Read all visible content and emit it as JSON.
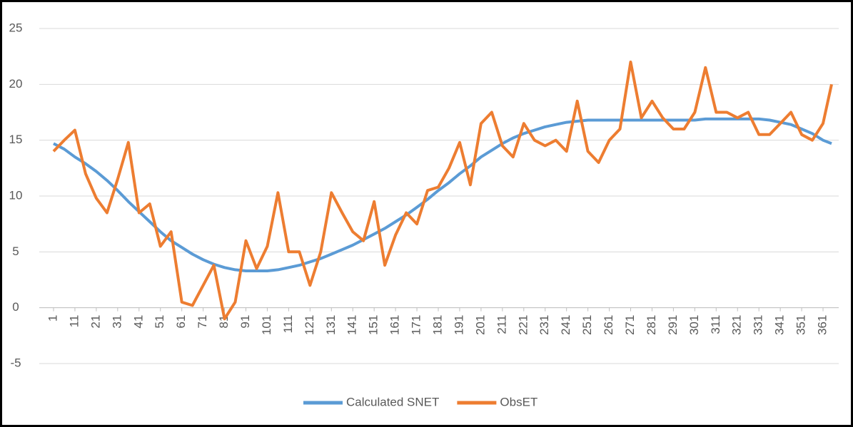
{
  "chart_data": {
    "type": "line",
    "x": [
      1,
      6,
      11,
      16,
      21,
      26,
      31,
      36,
      41,
      46,
      51,
      56,
      61,
      66,
      71,
      76,
      81,
      86,
      91,
      96,
      101,
      106,
      111,
      116,
      121,
      126,
      131,
      136,
      141,
      146,
      151,
      156,
      161,
      166,
      171,
      176,
      181,
      186,
      191,
      196,
      201,
      206,
      211,
      216,
      221,
      226,
      231,
      236,
      241,
      246,
      251,
      256,
      261,
      266,
      271,
      276,
      281,
      286,
      291,
      296,
      301,
      306,
      311,
      316,
      321,
      326,
      331,
      336,
      341,
      346,
      351,
      356,
      361,
      365
    ],
    "series": [
      {
        "name": "Calculated SNET",
        "color": "#5b9bd5",
        "values": [
          14.7,
          14.2,
          13.5,
          12.9,
          12.2,
          11.4,
          10.5,
          9.5,
          8.6,
          7.7,
          6.8,
          6.0,
          5.4,
          4.8,
          4.3,
          3.9,
          3.6,
          3.4,
          3.3,
          3.3,
          3.3,
          3.4,
          3.6,
          3.8,
          4.1,
          4.4,
          4.8,
          5.2,
          5.6,
          6.1,
          6.6,
          7.1,
          7.7,
          8.3,
          9.0,
          9.7,
          10.5,
          11.2,
          12.0,
          12.7,
          13.5,
          14.1,
          14.7,
          15.2,
          15.6,
          15.9,
          16.2,
          16.4,
          16.6,
          16.7,
          16.8,
          16.8,
          16.8,
          16.8,
          16.8,
          16.8,
          16.8,
          16.8,
          16.8,
          16.8,
          16.8,
          16.9,
          16.9,
          16.9,
          16.9,
          16.9,
          16.9,
          16.8,
          16.6,
          16.4,
          16.0,
          15.6,
          15.0,
          14.7
        ]
      },
      {
        "name": "ObsET",
        "color": "#ed7d31",
        "values": [
          14.0,
          15.0,
          15.9,
          12.0,
          9.8,
          8.5,
          11.5,
          14.8,
          8.5,
          9.3,
          5.5,
          6.8,
          0.5,
          0.2,
          2.0,
          3.8,
          -1.0,
          0.5,
          6.0,
          3.5,
          5.5,
          10.3,
          5.0,
          5.0,
          2.0,
          5.0,
          10.3,
          8.5,
          6.8,
          6.0,
          9.5,
          3.8,
          6.5,
          8.5,
          7.5,
          10.5,
          10.8,
          12.5,
          14.8,
          11.0,
          16.5,
          17.5,
          14.5,
          13.5,
          16.5,
          15.0,
          14.5,
          15.0,
          14.0,
          18.5,
          14.0,
          13.0,
          15.0,
          16.0,
          22.0,
          17.0,
          18.5,
          17.0,
          16.0,
          16.0,
          17.5,
          21.5,
          17.5,
          17.5,
          17.0,
          17.5,
          15.5,
          15.5,
          16.5,
          17.5,
          15.5,
          15.0,
          16.5,
          20.0
        ]
      }
    ],
    "xlim": [
      1,
      365
    ],
    "xticks": [
      1,
      11,
      21,
      31,
      41,
      51,
      61,
      71,
      81,
      91,
      101,
      111,
      121,
      131,
      141,
      151,
      161,
      171,
      181,
      191,
      201,
      211,
      221,
      231,
      241,
      251,
      261,
      271,
      281,
      291,
      301,
      311,
      321,
      331,
      341,
      351,
      361
    ],
    "ylim": [
      -5,
      25
    ],
    "yticks": [
      -5,
      0,
      5,
      10,
      15,
      20,
      25
    ],
    "grid": true,
    "legend": "bottom"
  }
}
